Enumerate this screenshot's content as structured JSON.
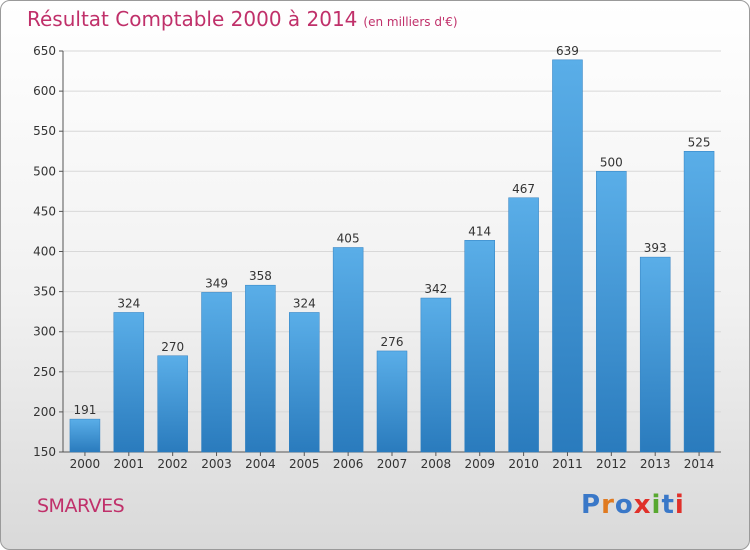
{
  "header": {
    "title": "Résultat Comptable 2000 à 2014",
    "subtitle": "(en milliers d'€)"
  },
  "footer": {
    "commune": "SMARVES",
    "logo_text": "Proxiti"
  },
  "colors": {
    "accent": "#c0306a",
    "bar_top": "#5aaee8",
    "bar_bottom": "#2a7bbd",
    "logo_letters": [
      "#3a78c8",
      "#e07a20",
      "#3a78c8",
      "#e0302a",
      "#58a830",
      "#3a78c8",
      "#e0302a"
    ]
  },
  "chart_data": {
    "type": "bar",
    "categories": [
      "2000",
      "2001",
      "2002",
      "2003",
      "2004",
      "2005",
      "2006",
      "2007",
      "2008",
      "2009",
      "2010",
      "2011",
      "2012",
      "2013",
      "2014"
    ],
    "values": [
      191,
      324,
      270,
      349,
      358,
      324,
      405,
      276,
      342,
      414,
      467,
      639,
      500,
      393,
      525
    ],
    "ylim": [
      150,
      650
    ],
    "yticks": [
      150,
      200,
      250,
      300,
      350,
      400,
      450,
      500,
      550,
      600,
      650
    ],
    "grid": true,
    "data_labels": true
  }
}
